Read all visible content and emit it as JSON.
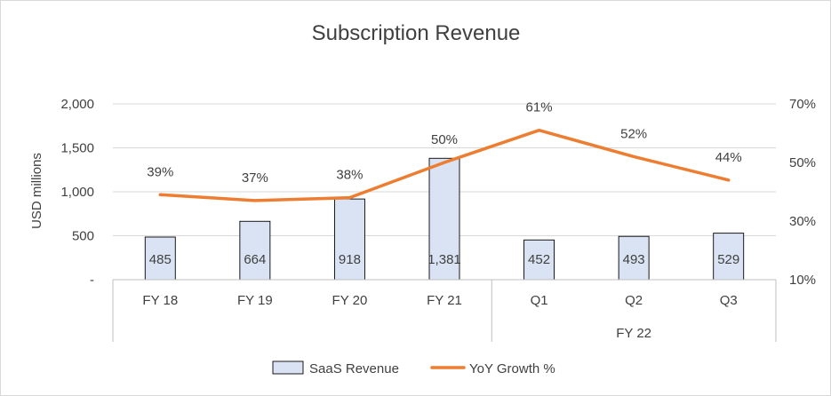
{
  "chart_data": {
    "type": "bar",
    "title": "Subscription Revenue",
    "ylabel": "USD millions",
    "ylim": [
      0,
      2000
    ],
    "y_ticks": [
      "-",
      "500",
      "1,000",
      "1,500",
      "2,000"
    ],
    "y2lim": [
      10,
      70
    ],
    "y2_ticks": [
      "10%",
      "30%",
      "50%",
      "70%"
    ],
    "categories": [
      "FY 18",
      "FY 19",
      "FY 20",
      "FY 21",
      "Q1",
      "Q2",
      "Q3"
    ],
    "category_groups": [
      {
        "label": "",
        "span": 4
      },
      {
        "label": "FY 22",
        "span": 3
      }
    ],
    "series": [
      {
        "name": "SaaS Revenue",
        "type": "bar",
        "axis": "left",
        "values": [
          485,
          664,
          918,
          1381,
          452,
          493,
          529
        ],
        "labels": [
          "485",
          "664",
          "918",
          "1,381",
          "452",
          "493",
          "529"
        ],
        "color": "#dae3f3"
      },
      {
        "name": "YoY Growth %",
        "type": "line",
        "axis": "right",
        "values": [
          39,
          37,
          38,
          50,
          61,
          52,
          44
        ],
        "labels": [
          "39%",
          "37%",
          "38%",
          "50%",
          "61%",
          "52%",
          "44%"
        ],
        "color": "#ed7d31"
      }
    ],
    "grid": true,
    "legend": "bottom"
  }
}
